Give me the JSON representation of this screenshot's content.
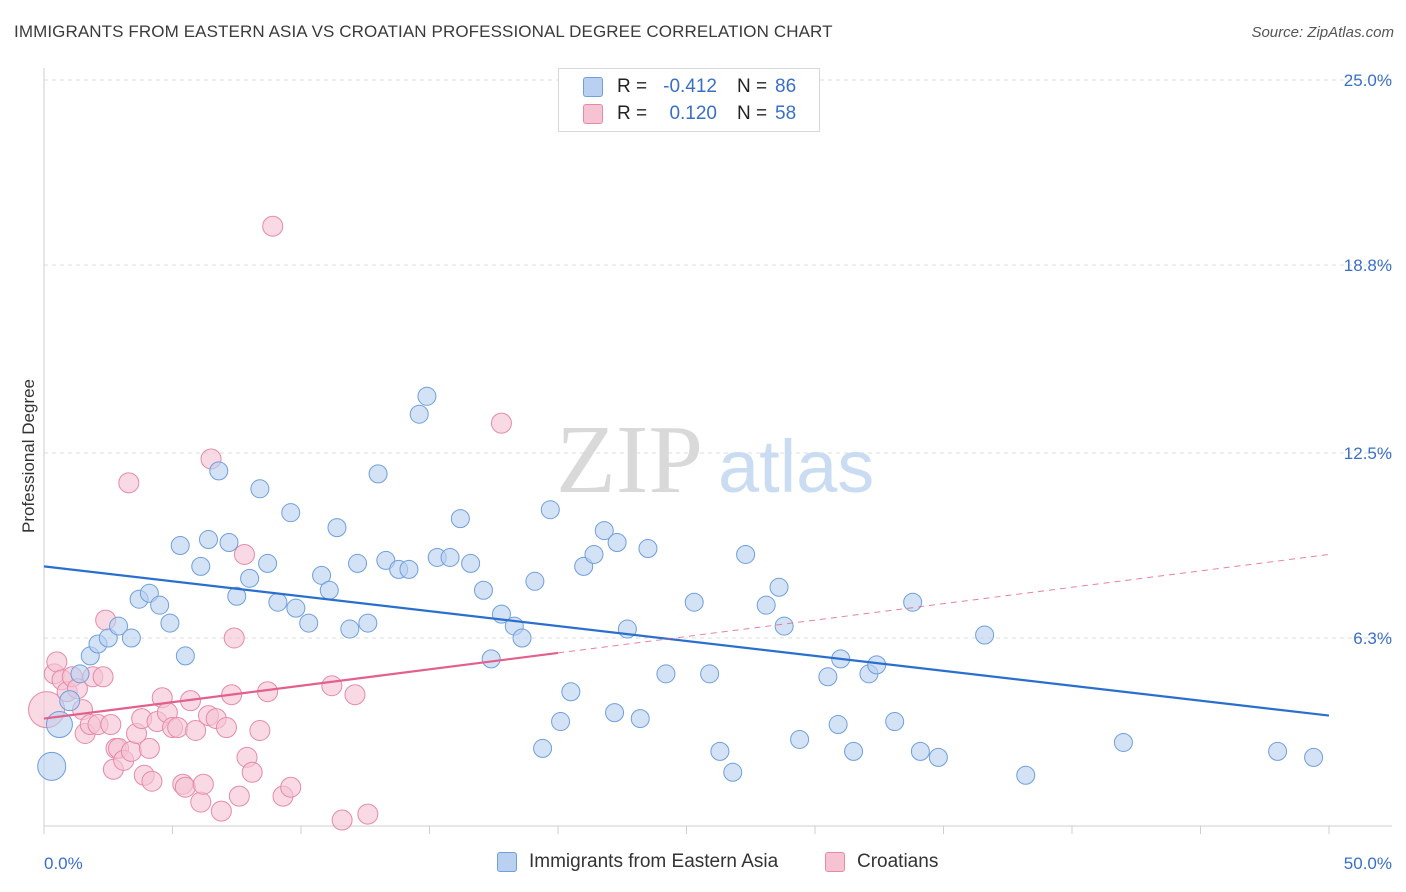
{
  "header": {
    "title": "IMMIGRANTS FROM EASTERN ASIA VS CROATIAN PROFESSIONAL DEGREE CORRELATION CHART",
    "source": "Source: ZipAtlas.com"
  },
  "watermark": {
    "zip": "ZIP",
    "atlas": "atlas"
  },
  "colors": {
    "blue_fill": "#b9d0f0",
    "blue_stroke": "#6f9fdc",
    "blue_line": "#2b6fce",
    "pink_fill": "#f6c3d3",
    "pink_stroke": "#e68aa8",
    "pink_line": "#e2608b",
    "tick_text": "#3a6fc7",
    "grid": "#dddddd"
  },
  "legend_top": {
    "rows": [
      {
        "r_label": "R =",
        "r_value": "-0.412",
        "n_label": "N =",
        "n_value": "86"
      },
      {
        "r_label": "R =",
        "r_value": "0.120",
        "n_label": "N =",
        "n_value": "58"
      }
    ]
  },
  "legend_bottom": {
    "items": [
      {
        "label": "Immigrants from Eastern Asia"
      },
      {
        "label": "Croatians"
      }
    ]
  },
  "chart_data": {
    "type": "scatter",
    "title": "IMMIGRANTS FROM EASTERN ASIA VS CROATIAN PROFESSIONAL DEGREE CORRELATION CHART",
    "xlabel": "",
    "ylabel": "Professional Degree",
    "xlim": [
      0,
      50
    ],
    "ylim": [
      0,
      25
    ],
    "x_tick_labels": [
      "0.0%",
      "50.0%"
    ],
    "y_ticks": [
      6.3,
      12.5,
      18.8,
      25.0
    ],
    "y_tick_labels": [
      "6.3%",
      "12.5%",
      "18.8%",
      "25.0%"
    ],
    "grid": true,
    "series": [
      {
        "name": "Immigrants from Eastern Asia",
        "r": -0.412,
        "n": 86,
        "trend": {
          "x": [
            0,
            50
          ],
          "y": [
            8.7,
            3.7
          ]
        },
        "points": [
          [
            0.3,
            2.0,
            14
          ],
          [
            0.6,
            3.4,
            13
          ],
          [
            1.0,
            4.2,
            10
          ],
          [
            1.4,
            5.1,
            9
          ],
          [
            1.8,
            5.7,
            9
          ],
          [
            2.1,
            6.1,
            9
          ],
          [
            2.5,
            6.3,
            9
          ],
          [
            2.9,
            6.7,
            9
          ],
          [
            3.4,
            6.3,
            9
          ],
          [
            3.7,
            7.6,
            9
          ],
          [
            4.1,
            7.8,
            9
          ],
          [
            4.5,
            7.4,
            9
          ],
          [
            4.9,
            6.8,
            9
          ],
          [
            5.3,
            9.4,
            9
          ],
          [
            5.5,
            5.7,
            9
          ],
          [
            6.1,
            8.7,
            9
          ],
          [
            6.4,
            9.6,
            9
          ],
          [
            6.8,
            11.9,
            9
          ],
          [
            7.2,
            9.5,
            9
          ],
          [
            7.5,
            7.7,
            9
          ],
          [
            8.0,
            8.3,
            9
          ],
          [
            8.4,
            11.3,
            9
          ],
          [
            8.7,
            8.8,
            9
          ],
          [
            9.1,
            7.5,
            9
          ],
          [
            9.6,
            10.5,
            9
          ],
          [
            9.8,
            7.3,
            9
          ],
          [
            10.3,
            6.8,
            9
          ],
          [
            10.8,
            8.4,
            9
          ],
          [
            11.1,
            7.9,
            9
          ],
          [
            11.4,
            10.0,
            9
          ],
          [
            11.9,
            6.6,
            9
          ],
          [
            12.2,
            8.8,
            9
          ],
          [
            12.6,
            6.8,
            9
          ],
          [
            13.0,
            11.8,
            9
          ],
          [
            13.3,
            8.9,
            9
          ],
          [
            13.8,
            8.6,
            9
          ],
          [
            14.2,
            8.6,
            9
          ],
          [
            14.6,
            13.8,
            9
          ],
          [
            14.9,
            14.4,
            9
          ],
          [
            15.3,
            9.0,
            9
          ],
          [
            15.8,
            9.0,
            9
          ],
          [
            16.2,
            10.3,
            9
          ],
          [
            16.6,
            8.8,
            9
          ],
          [
            17.1,
            7.9,
            9
          ],
          [
            17.4,
            5.6,
            9
          ],
          [
            17.8,
            7.1,
            9
          ],
          [
            18.3,
            6.7,
            9
          ],
          [
            18.6,
            6.3,
            9
          ],
          [
            19.1,
            8.2,
            9
          ],
          [
            19.4,
            2.6,
            9
          ],
          [
            19.7,
            10.6,
            9
          ],
          [
            20.1,
            3.5,
            9
          ],
          [
            20.5,
            4.5,
            9
          ],
          [
            21.0,
            8.7,
            9
          ],
          [
            21.4,
            9.1,
            9
          ],
          [
            21.8,
            9.9,
            9
          ],
          [
            22.2,
            3.8,
            9
          ],
          [
            22.3,
            9.5,
            9
          ],
          [
            22.7,
            6.6,
            9
          ],
          [
            23.2,
            3.6,
            9
          ],
          [
            23.5,
            9.3,
            9
          ],
          [
            24.2,
            5.1,
            9
          ],
          [
            25.3,
            7.5,
            9
          ],
          [
            25.9,
            5.1,
            9
          ],
          [
            26.3,
            2.5,
            9
          ],
          [
            26.8,
            1.8,
            9
          ],
          [
            27.3,
            9.1,
            9
          ],
          [
            28.1,
            7.4,
            9
          ],
          [
            28.6,
            8.0,
            9
          ],
          [
            28.8,
            6.7,
            9
          ],
          [
            29.4,
            2.9,
            9
          ],
          [
            30.5,
            5.0,
            9
          ],
          [
            30.9,
            3.4,
            9
          ],
          [
            31.0,
            5.6,
            9
          ],
          [
            31.5,
            2.5,
            9
          ],
          [
            32.1,
            5.1,
            9
          ],
          [
            32.4,
            5.4,
            9
          ],
          [
            33.1,
            3.5,
            9
          ],
          [
            33.8,
            7.5,
            9
          ],
          [
            34.1,
            2.5,
            9
          ],
          [
            34.8,
            2.3,
            9
          ],
          [
            36.6,
            6.4,
            9
          ],
          [
            38.2,
            1.7,
            9
          ],
          [
            42.0,
            2.8,
            9
          ],
          [
            48.0,
            2.5,
            9
          ],
          [
            49.4,
            2.3,
            9
          ]
        ]
      },
      {
        "name": "Croatians",
        "r": 0.12,
        "n": 58,
        "trend_solid": {
          "x": [
            0,
            20
          ],
          "y": [
            3.6,
            5.8
          ]
        },
        "trend_dashed": {
          "x": [
            20,
            50
          ],
          "y": [
            5.8,
            9.1
          ]
        },
        "points": [
          [
            0.1,
            3.9,
            18
          ],
          [
            0.4,
            5.1,
            10
          ],
          [
            0.5,
            5.5,
            10
          ],
          [
            0.7,
            4.9,
            10
          ],
          [
            0.9,
            4.5,
            10
          ],
          [
            1.1,
            5.0,
            10
          ],
          [
            1.3,
            4.6,
            10
          ],
          [
            1.5,
            3.9,
            10
          ],
          [
            1.6,
            3.1,
            10
          ],
          [
            1.8,
            3.4,
            10
          ],
          [
            1.9,
            5.0,
            10
          ],
          [
            2.1,
            3.4,
            10
          ],
          [
            2.3,
            5.0,
            10
          ],
          [
            2.4,
            6.9,
            10
          ],
          [
            2.6,
            3.4,
            10
          ],
          [
            2.7,
            1.9,
            10
          ],
          [
            2.8,
            2.6,
            10
          ],
          [
            2.9,
            2.6,
            10
          ],
          [
            3.1,
            2.2,
            10
          ],
          [
            3.3,
            11.5,
            10
          ],
          [
            3.4,
            2.5,
            10
          ],
          [
            3.6,
            3.1,
            10
          ],
          [
            3.8,
            3.6,
            10
          ],
          [
            3.9,
            1.7,
            10
          ],
          [
            4.1,
            2.6,
            10
          ],
          [
            4.2,
            1.5,
            10
          ],
          [
            4.4,
            3.5,
            10
          ],
          [
            4.6,
            4.3,
            10
          ],
          [
            4.8,
            3.8,
            10
          ],
          [
            5.0,
            3.3,
            10
          ],
          [
            5.2,
            3.3,
            10
          ],
          [
            5.4,
            1.4,
            10
          ],
          [
            5.5,
            1.3,
            10
          ],
          [
            5.7,
            4.2,
            10
          ],
          [
            5.9,
            3.2,
            10
          ],
          [
            6.1,
            0.8,
            10
          ],
          [
            6.2,
            1.4,
            10
          ],
          [
            6.4,
            3.7,
            10
          ],
          [
            6.5,
            12.3,
            10
          ],
          [
            6.7,
            3.6,
            10
          ],
          [
            6.9,
            0.5,
            10
          ],
          [
            7.1,
            3.3,
            10
          ],
          [
            7.3,
            4.4,
            10
          ],
          [
            7.4,
            6.3,
            10
          ],
          [
            7.6,
            1.0,
            10
          ],
          [
            7.8,
            9.1,
            10
          ],
          [
            7.9,
            2.3,
            10
          ],
          [
            8.1,
            1.8,
            10
          ],
          [
            8.4,
            3.2,
            10
          ],
          [
            8.7,
            4.5,
            10
          ],
          [
            8.9,
            20.1,
            10
          ],
          [
            9.3,
            1.0,
            10
          ],
          [
            9.6,
            1.3,
            10
          ],
          [
            11.2,
            4.7,
            10
          ],
          [
            11.6,
            0.2,
            10
          ],
          [
            12.1,
            4.4,
            10
          ],
          [
            12.6,
            0.4,
            10
          ],
          [
            17.8,
            13.5,
            10
          ]
        ]
      }
    ]
  }
}
